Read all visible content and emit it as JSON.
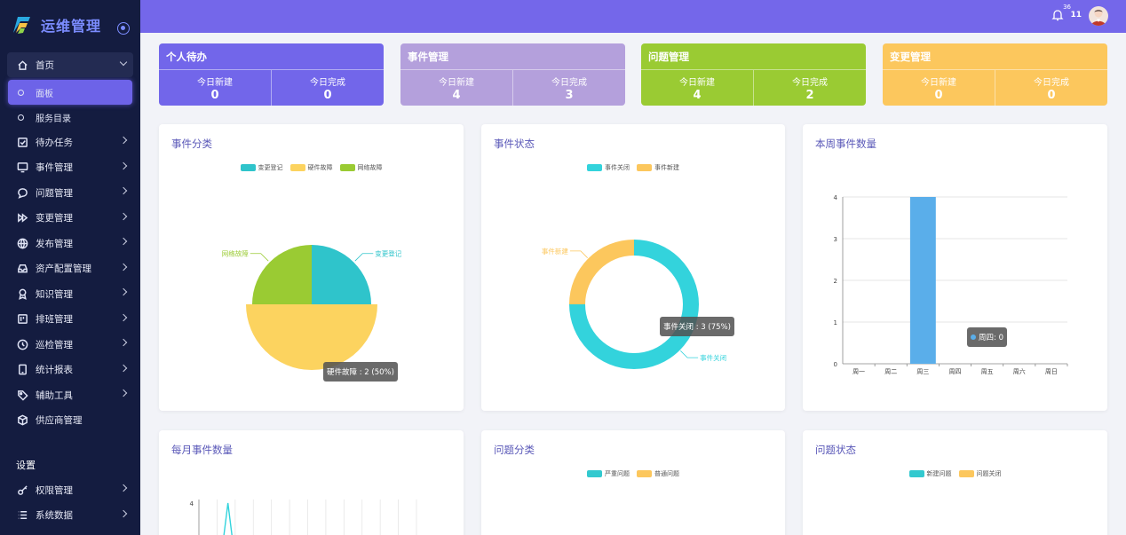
{
  "app": {
    "title": "运维管理"
  },
  "header": {
    "notification_count": "36",
    "user_number": "11"
  },
  "sidebar": {
    "home": {
      "label": "首页",
      "icon": "home-icon"
    },
    "home_children": [
      {
        "label": "面板",
        "active": true
      },
      {
        "label": "服务目录",
        "active": false
      }
    ],
    "items": [
      {
        "label": "待办任务",
        "icon": "checkbox-icon"
      },
      {
        "label": "事件管理",
        "icon": "monitor-icon"
      },
      {
        "label": "问题管理",
        "icon": "chat-icon"
      },
      {
        "label": "变更管理",
        "icon": "fast-forward-icon"
      },
      {
        "label": "发布管理",
        "icon": "globe-icon"
      },
      {
        "label": "资产配置管理",
        "icon": "inbox-icon"
      },
      {
        "label": "知识管理",
        "icon": "award-icon"
      },
      {
        "label": "排班管理",
        "icon": "schedule-icon"
      },
      {
        "label": "巡检管理",
        "icon": "clock-icon"
      },
      {
        "label": "统计报表",
        "icon": "tablet-icon"
      },
      {
        "label": "辅助工具",
        "icon": "tag-icon"
      },
      {
        "label": "供应商管理",
        "icon": "box-icon"
      }
    ],
    "settings_title": "设置",
    "settings_items": [
      {
        "label": "权限管理",
        "icon": "key-icon"
      },
      {
        "label": "系统数据",
        "icon": "list-icon"
      }
    ]
  },
  "stats": [
    {
      "title": "个人待办",
      "new_label": "今日新建",
      "new_value": "0",
      "done_label": "今日完成",
      "done_value": "0",
      "color": "#7266ea"
    },
    {
      "title": "事件管理",
      "new_label": "今日新建",
      "new_value": "4",
      "done_label": "今日完成",
      "done_value": "3",
      "color": "#b4a0dc"
    },
    {
      "title": "问题管理",
      "new_label": "今日新建",
      "new_value": "4",
      "done_label": "今日完成",
      "done_value": "2",
      "color": "#9acb33"
    },
    {
      "title": "变更管理",
      "new_label": "今日新建",
      "new_value": "0",
      "done_label": "今日完成",
      "done_value": "0",
      "color": "#fcc75d"
    }
  ],
  "charts": {
    "event_category": {
      "title": "事件分类",
      "legend": [
        "变更登记",
        "硬件故障",
        "网络故障"
      ],
      "tooltip": "硬件故障 : 2 (50%)"
    },
    "event_status": {
      "title": "事件状态",
      "legend": [
        "事件关闭",
        "事件新建"
      ],
      "tooltip": "事件关闭 : 3 (75%)"
    },
    "weekly_events": {
      "title": "本周事件数量",
      "tooltip": "周四: 0"
    },
    "monthly_events": {
      "title": "每月事件数量"
    },
    "problem_category": {
      "title": "问题分类",
      "legend": [
        "严重问题",
        "普通问题"
      ]
    },
    "problem_status": {
      "title": "问题状态",
      "legend": [
        "新建问题",
        "问题关闭"
      ]
    }
  },
  "chart_data": [
    {
      "type": "pie",
      "title": "事件分类",
      "labels": [
        "变更登记",
        "硬件故障",
        "网络故障"
      ],
      "values": [
        1,
        2,
        1
      ],
      "colors": [
        "#2fc4cb",
        "#fcd35f",
        "#9acb33"
      ]
    },
    {
      "type": "pie",
      "title": "事件状态",
      "labels": [
        "事件关闭",
        "事件新建"
      ],
      "values": [
        3,
        1
      ],
      "colors": [
        "#33d3dc",
        "#fcc75d"
      ],
      "donut": true
    },
    {
      "type": "bar",
      "title": "本周事件数量",
      "categories": [
        "周一",
        "周二",
        "周三",
        "周四",
        "周五",
        "周六",
        "周日"
      ],
      "values": [
        0,
        0,
        4,
        0,
        0,
        0,
        0
      ],
      "ylim": [
        0,
        4
      ],
      "yticks": [
        "0",
        "1",
        "2",
        "3",
        "4"
      ],
      "color": "#5aaeea",
      "grid": true
    },
    {
      "type": "line",
      "title": "每月事件数量",
      "yticks_visible": [
        "4"
      ],
      "color": "#33d3dc"
    }
  ]
}
